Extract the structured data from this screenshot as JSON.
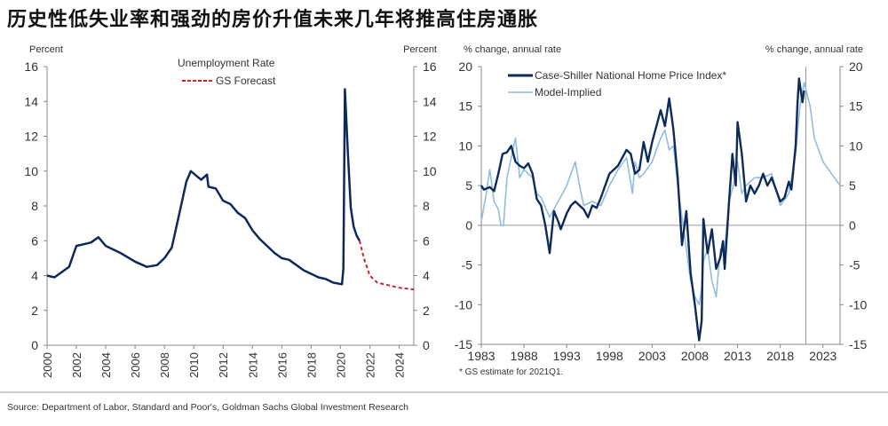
{
  "title": "历史性低失业率和强劲的房价升值未来几年将推高住房通胀",
  "source": "Source: Department of Labor, Standard and Poor's, Goldman Sachs Global Investment Research",
  "colors": {
    "dark": "#0d2a5a",
    "light": "#8fbde0",
    "forecast": "#c0282d"
  },
  "chart_data": [
    {
      "type": "line",
      "title": "",
      "ylabel_left": "Percent",
      "ylabel_right": "Percent",
      "ylim": [
        0,
        16
      ],
      "yticks": [
        "0",
        "2",
        "4",
        "6",
        "8",
        "10",
        "12",
        "14",
        "16"
      ],
      "xlim": [
        2000,
        2025
      ],
      "xticks": [
        "2000",
        "2002",
        "2004",
        "2006",
        "2008",
        "2010",
        "2012",
        "2014",
        "2016",
        "2018",
        "2020",
        "2022",
        "2024"
      ],
      "legend": [
        "Unemployment Rate",
        "GS Forecast"
      ],
      "legend_placement": "top-center",
      "series": [
        {
          "name": "Unemployment Rate",
          "x": [
            2000,
            2000.5,
            2001,
            2001.5,
            2002,
            2002.5,
            2003,
            2003.5,
            2004,
            2005,
            2006,
            2006.8,
            2007.5,
            2008,
            2008.5,
            2009,
            2009.5,
            2009.8,
            2010.5,
            2010.9,
            2011,
            2011.5,
            2012,
            2012.5,
            2013,
            2013.5,
            2014,
            2014.5,
            2015,
            2015.5,
            2016,
            2016.5,
            2017,
            2017.5,
            2018,
            2018.5,
            2019,
            2019.5,
            2020.1,
            2020.2,
            2020.3,
            2020.5,
            2020.7,
            2020.9,
            2021.1,
            2021.3
          ],
          "y": [
            4.0,
            3.9,
            4.2,
            4.5,
            5.7,
            5.8,
            5.9,
            6.2,
            5.7,
            5.3,
            4.8,
            4.5,
            4.6,
            5.0,
            5.6,
            7.5,
            9.4,
            10.0,
            9.5,
            9.8,
            9.1,
            9.0,
            8.3,
            8.1,
            7.6,
            7.3,
            6.6,
            6.1,
            5.7,
            5.3,
            5.0,
            4.9,
            4.6,
            4.3,
            4.1,
            3.9,
            3.8,
            3.6,
            3.5,
            4.4,
            14.7,
            11.1,
            7.9,
            6.8,
            6.3,
            6.0
          ]
        },
        {
          "name": "GS Forecast",
          "x": [
            2021.3,
            2021.6,
            2022,
            2022.5,
            2023,
            2023.5,
            2024,
            2025
          ],
          "y": [
            6.0,
            5.0,
            4.0,
            3.6,
            3.5,
            3.4,
            3.3,
            3.2
          ]
        }
      ]
    },
    {
      "type": "line",
      "title": "",
      "ylabel_left": "% change, annual rate",
      "ylabel_right": "% change, annual rate",
      "ylim": [
        -15,
        20
      ],
      "yticks": [
        "-15",
        "-10",
        "-5",
        "0",
        "5",
        "10",
        "15",
        "20"
      ],
      "xlim": [
        1983,
        2025
      ],
      "xticks": [
        "1983",
        "1988",
        "1993",
        "1998",
        "2003",
        "2008",
        "2013",
        "2018",
        "2023"
      ],
      "legend": [
        "Case-Shiller National Home Price Index*",
        "Model-Implied"
      ],
      "legend_placement": "top-left",
      "footnote": "* GS estimate for 2021Q1.",
      "vline_x": 2021,
      "series": [
        {
          "name": "Case-Shiller National Home Price Index*",
          "x": [
            1983,
            1983.3,
            1984,
            1984.5,
            1985,
            1985.5,
            1986,
            1986.5,
            1987,
            1987.5,
            1988,
            1988.5,
            1989,
            1989.5,
            1990,
            1990.5,
            1991,
            1991.5,
            1992,
            1992.3,
            1993,
            1993.5,
            1994,
            1995,
            1995.5,
            1996,
            1996.5,
            1997,
            1998,
            1999,
            2000,
            2000.5,
            2001,
            2001.5,
            2002,
            2002.5,
            2003,
            2004,
            2004.5,
            2005,
            2005.5,
            2006,
            2006.5,
            2007,
            2007.5,
            2008,
            2008.5,
            2008.8,
            2009,
            2009.5,
            2010,
            2010.5,
            2011,
            2011.3,
            2011.5,
            2012,
            2012.4,
            2012.8,
            2013,
            2013.5,
            2014,
            2014.5,
            2015,
            2015.5,
            2016,
            2016.5,
            2017,
            2018,
            2018.5,
            2019,
            2019.3,
            2019.8,
            2020,
            2020.2,
            2020.6,
            2020.8
          ],
          "y": [
            5,
            4.5,
            4.8,
            4.3,
            6.5,
            9,
            9.2,
            10,
            8,
            7.5,
            7.2,
            7.8,
            6.5,
            3.3,
            2.5,
            0,
            -3.5,
            1.8,
            0.5,
            -0.5,
            1.5,
            2.5,
            3,
            2,
            1,
            2.5,
            2.2,
            3.5,
            6.5,
            7.5,
            9.5,
            9,
            6.5,
            7,
            10.5,
            8,
            10.5,
            14.5,
            12.5,
            16,
            12,
            6,
            -2.5,
            1.8,
            -6,
            -10,
            -14.5,
            -12,
            0.8,
            -3.5,
            -0.5,
            -5.5,
            -4,
            -2,
            -5.5,
            3,
            9,
            5,
            13,
            9,
            3,
            5,
            4,
            5,
            6.5,
            5,
            6,
            3,
            3.5,
            5.5,
            4.5,
            10,
            15,
            18.5,
            15.5,
            17
          ]
        },
        {
          "name": "Model-Implied",
          "x": [
            1983,
            1983.5,
            1984,
            1984.5,
            1985,
            1985.3,
            1985.6,
            1986,
            1987,
            1987.5,
            1988,
            1989,
            1989.5,
            1990,
            1991,
            1992,
            1993,
            1994,
            1994.5,
            1995,
            1996,
            1997,
            1998,
            1999,
            2000,
            2000.7,
            2001,
            2001.5,
            2002,
            2003,
            2004,
            2004.5,
            2005,
            2005.5,
            2006,
            2006.5,
            2007,
            2007.5,
            2008,
            2008.5,
            2008.8,
            2009,
            2009.5,
            2010,
            2010.5,
            2011,
            2011.5,
            2012,
            2012.5,
            2013,
            2013.5,
            2014,
            2015,
            2016,
            2017,
            2018,
            2019,
            2019.8,
            2020.3,
            2020.8,
            2021.5,
            2022,
            2023,
            2024,
            2025
          ],
          "y": [
            0.5,
            3.5,
            7,
            3,
            2,
            0,
            0,
            6,
            11,
            6,
            7,
            6,
            4,
            3.5,
            1,
            3,
            5,
            8,
            5,
            2.5,
            3,
            2.5,
            5,
            7,
            8.5,
            4,
            8,
            6,
            6.5,
            8,
            11,
            12,
            9.5,
            10,
            5,
            1,
            -3,
            -7,
            -9,
            -10,
            -8,
            -4.5,
            -3,
            -7,
            -9,
            -3,
            -3,
            3,
            5,
            8,
            4,
            5,
            6,
            6,
            6.5,
            2.5,
            4,
            9,
            15,
            18,
            15,
            11,
            8,
            6.5,
            5
          ]
        }
      ]
    }
  ]
}
